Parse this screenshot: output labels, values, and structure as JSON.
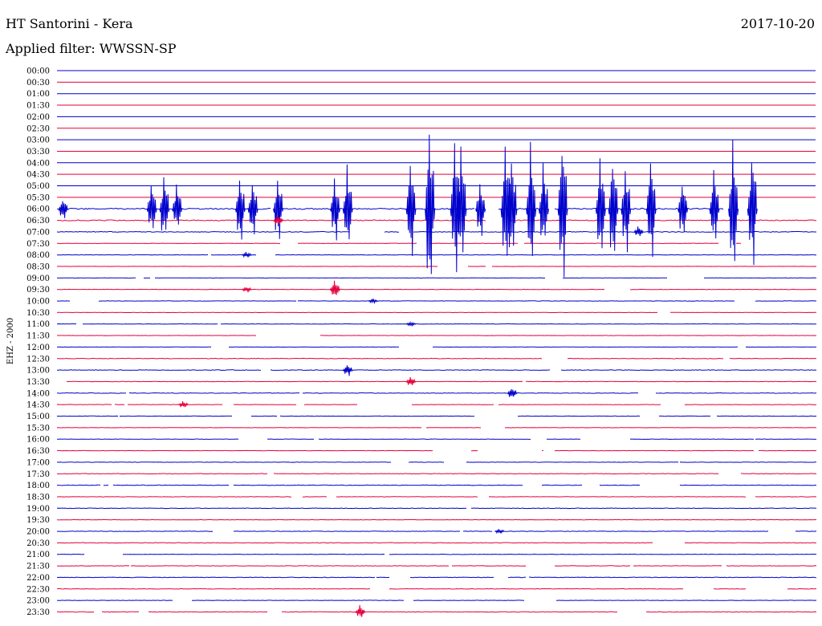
{
  "header": {
    "station": "HT Santorini - Kera",
    "date": "2017-10-20",
    "filter": "Applied filter: WWSSN-SP"
  },
  "colors": {
    "even_row": "#0000cc",
    "odd_row": "#e6003c"
  },
  "chart_data": {
    "type": "line",
    "title": "HT Santorini - Kera",
    "subtitle": "Applied filter: WWSSN-SP",
    "ylabel": "EHZ - 2000",
    "xlabel": "",
    "grid": false,
    "legend": "none",
    "categories": [
      "00:00",
      "00:30",
      "01:00",
      "01:30",
      "02:00",
      "02:30",
      "03:00",
      "03:30",
      "04:00",
      "04:30",
      "05:00",
      "05:30",
      "06:00",
      "06:30",
      "07:00",
      "07:30",
      "08:00",
      "08:30",
      "09:00",
      "09:30",
      "10:00",
      "10:30",
      "11:00",
      "11:30",
      "12:00",
      "12:30",
      "13:00",
      "13:30",
      "14:00",
      "14:30",
      "15:00",
      "15:30",
      "16:00",
      "16:30",
      "17:00",
      "17:30",
      "18:00",
      "18:30",
      "19:00",
      "19:30",
      "20:00",
      "20:30",
      "21:00",
      "21:30",
      "22:00",
      "22:30",
      "23:00",
      "23:30"
    ],
    "trace_intensity": [
      0,
      0,
      0,
      0,
      0,
      0,
      0,
      0,
      0,
      0,
      0,
      0,
      0.35,
      0.25,
      0.2,
      0.1,
      0.12,
      0.05,
      0.08,
      0.12,
      0.08,
      0.08,
      0.1,
      0.06,
      0.06,
      0.15,
      0.15,
      0.1,
      0.15,
      0.1,
      0.08,
      0.08,
      0.1,
      0.08,
      0.1,
      0.15,
      0.15,
      0.1,
      0.15,
      0.1,
      0.12,
      0.15,
      0.12,
      0.12,
      0.15,
      0.12,
      0.1,
      0.15
    ],
    "events": [
      {
        "row": 12,
        "minute": 0.5,
        "amp": 14
      },
      {
        "row": 12,
        "minute": 7.5,
        "amp": 38
      },
      {
        "row": 12,
        "minute": 8.5,
        "amp": 44
      },
      {
        "row": 12,
        "minute": 9.5,
        "amp": 32
      },
      {
        "row": 12,
        "minute": 14.5,
        "amp": 48
      },
      {
        "row": 12,
        "minute": 15.5,
        "amp": 42
      },
      {
        "row": 12,
        "minute": 17.5,
        "amp": 44
      },
      {
        "row": 12,
        "minute": 22,
        "amp": 45
      },
      {
        "row": 12,
        "minute": 23,
        "amp": 60
      },
      {
        "row": 12,
        "minute": 28,
        "amp": 68
      },
      {
        "row": 12,
        "minute": 29.5,
        "amp": 120
      },
      {
        "row": 12,
        "minute": 31.5,
        "amp": 95
      },
      {
        "row": 12,
        "minute": 32,
        "amp": 82
      },
      {
        "row": 12,
        "minute": 33.5,
        "amp": 40
      },
      {
        "row": 12,
        "minute": 35.5,
        "amp": 92
      },
      {
        "row": 12,
        "minute": 36,
        "amp": 78
      },
      {
        "row": 12,
        "minute": 37.5,
        "amp": 88
      },
      {
        "row": 12,
        "minute": 38.5,
        "amp": 60
      },
      {
        "row": 12,
        "minute": 40,
        "amp": 104
      },
      {
        "row": 12,
        "minute": 43,
        "amp": 74
      },
      {
        "row": 12,
        "minute": 44,
        "amp": 82
      },
      {
        "row": 12,
        "minute": 45,
        "amp": 60
      },
      {
        "row": 12,
        "minute": 47,
        "amp": 70
      },
      {
        "row": 12,
        "minute": 49.5,
        "amp": 40
      },
      {
        "row": 12,
        "minute": 52,
        "amp": 55
      },
      {
        "row": 12,
        "minute": 53.5,
        "amp": 90
      },
      {
        "row": 12,
        "minute": 55,
        "amp": 85
      },
      {
        "row": 13,
        "minute": 17.5,
        "amp": 8
      },
      {
        "row": 14,
        "minute": 46,
        "amp": 8
      },
      {
        "row": 16,
        "minute": 15,
        "amp": 4
      },
      {
        "row": 19,
        "minute": 15,
        "amp": 4
      },
      {
        "row": 19,
        "minute": 22,
        "amp": 12
      },
      {
        "row": 20,
        "minute": 25,
        "amp": 3
      },
      {
        "row": 22,
        "minute": 28,
        "amp": 3
      },
      {
        "row": 26,
        "minute": 23,
        "amp": 9
      },
      {
        "row": 27,
        "minute": 28,
        "amp": 7
      },
      {
        "row": 28,
        "minute": 36,
        "amp": 8
      },
      {
        "row": 29,
        "minute": 10,
        "amp": 5
      },
      {
        "row": 40,
        "minute": 35,
        "amp": 3
      },
      {
        "row": 47,
        "minute": 24,
        "amp": 9
      }
    ]
  }
}
